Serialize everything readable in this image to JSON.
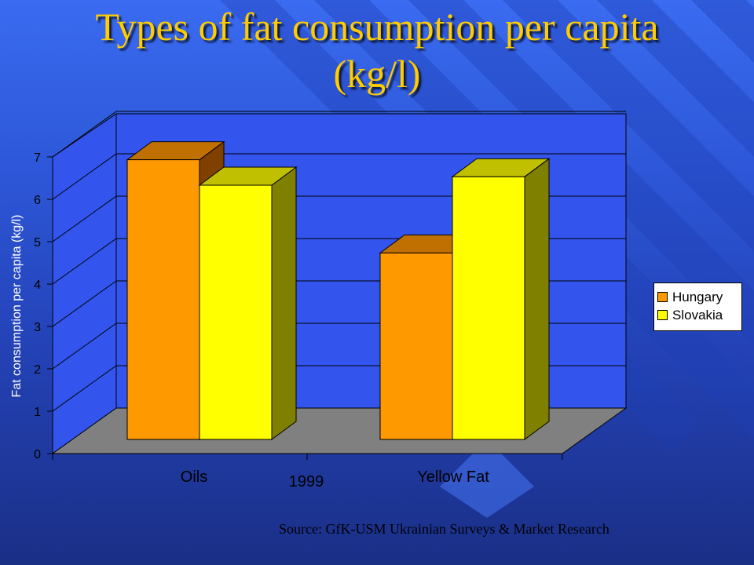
{
  "slide": {
    "title_line1": "Types of fat consumption per capita",
    "title_line2": "(kg/l)",
    "source": "Source: GfK-USM Ukrainian Surveys & Market Research"
  },
  "chart_data": {
    "type": "bar",
    "style": "3d-clustered",
    "categories": [
      "Oils",
      "Yellow Fat"
    ],
    "series": [
      {
        "name": "Hungary",
        "values": [
          6.6,
          4.4
        ],
        "color": "#ff9900",
        "top_color": "#c07000",
        "side_color": "#804000"
      },
      {
        "name": "Slovakia",
        "values": [
          6.0,
          6.2
        ],
        "color": "#ffff00",
        "top_color": "#c0c000",
        "side_color": "#808000"
      }
    ],
    "xlabel": "1999",
    "ylabel": "Fat consumption per capita (kg/l)",
    "ylim": [
      0,
      7
    ],
    "yticks": [
      0,
      1,
      2,
      3,
      4,
      5,
      6,
      7
    ],
    "grid": true,
    "legend_position": "right",
    "colors": {
      "wall": "#3355ee",
      "floor": "#808080",
      "grid": "#000000"
    }
  }
}
